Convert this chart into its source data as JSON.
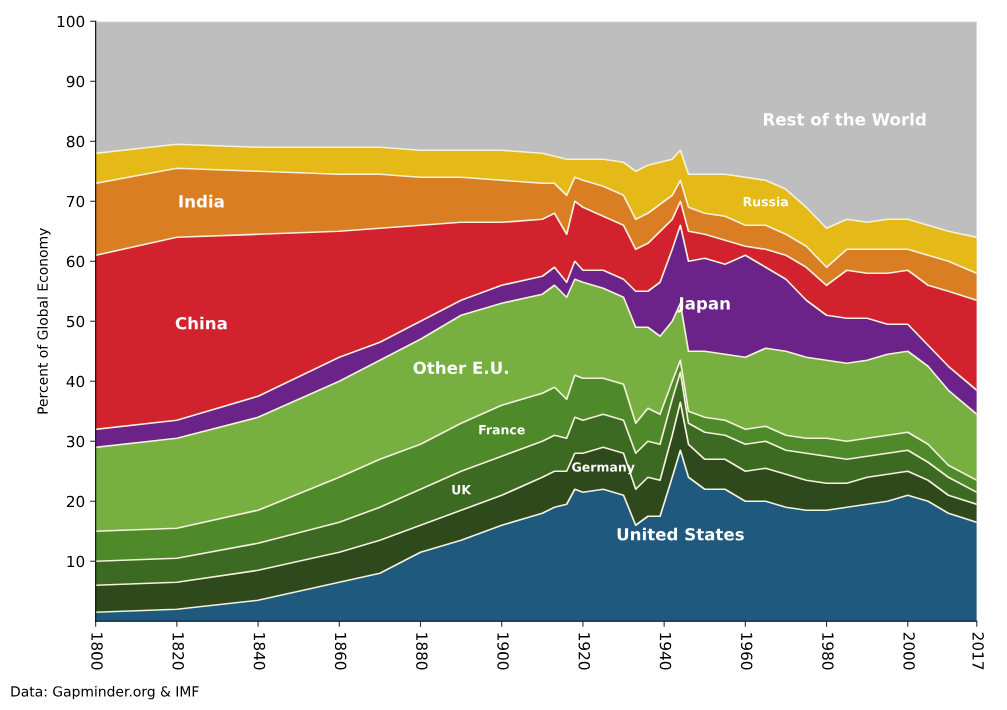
{
  "chart_data": {
    "type": "area",
    "stacked": true,
    "ylabel": "Percent of Global Economy",
    "annotations": [
      "Data: Gapminder.org & IMF"
    ],
    "x": [
      1800,
      1820,
      1840,
      1860,
      1870,
      1880,
      1890,
      1900,
      1910,
      1913,
      1916,
      1918,
      1920,
      1925,
      1930,
      1933,
      1936,
      1939,
      1942,
      1944,
      1946,
      1950,
      1955,
      1960,
      1965,
      1970,
      1975,
      1980,
      1985,
      1990,
      1995,
      2000,
      2005,
      2010,
      2017
    ],
    "xlim": [
      1800,
      2017
    ],
    "xticks": [
      1800,
      1820,
      1840,
      1860,
      1880,
      1900,
      1920,
      1940,
      1960,
      1980,
      2000,
      2017
    ],
    "ylim": [
      0,
      100
    ],
    "yticks": [
      10,
      20,
      30,
      40,
      50,
      60,
      70,
      80,
      90,
      100
    ],
    "grid": false,
    "legend": false,
    "series": [
      {
        "name": "United States",
        "color": "#1f5a7e",
        "values": [
          1.5,
          2,
          3.5,
          6.5,
          8,
          11.5,
          13.5,
          16,
          18,
          19,
          19.5,
          22,
          21.5,
          22,
          21,
          16,
          17.5,
          17.5,
          24,
          28.5,
          24,
          22,
          22,
          20,
          20,
          19,
          18.5,
          18.5,
          19,
          19.5,
          20,
          21,
          20,
          18,
          16.5
        ]
      },
      {
        "name": "Germany",
        "color": "#2e4a1d",
        "values": [
          4.5,
          4.5,
          5,
          5,
          5.5,
          4.5,
          5,
          5,
          6,
          6,
          5.5,
          6,
          6.5,
          7,
          7,
          6,
          6.5,
          6,
          7,
          8,
          5.5,
          5,
          5,
          5,
          5.5,
          5.5,
          5,
          4.5,
          4,
          4.5,
          4.5,
          4,
          3.5,
          3,
          3
        ]
      },
      {
        "name": "UK",
        "color": "#3d6a22",
        "values": [
          4,
          4,
          4.5,
          5,
          5.5,
          6,
          6.5,
          6.5,
          6,
          6,
          5.5,
          6,
          5.5,
          5.5,
          5.5,
          6,
          6,
          6,
          6,
          5,
          3.5,
          4.5,
          4,
          4.5,
          4.5,
          4,
          4.5,
          4.5,
          4,
          3.5,
          3.5,
          3.5,
          3,
          3,
          2
        ]
      },
      {
        "name": "France",
        "color": "#4f8a2a",
        "values": [
          5,
          5,
          5.5,
          7.5,
          8,
          7.5,
          8,
          8.5,
          8,
          8,
          6.5,
          7,
          7,
          6,
          6,
          5,
          5.5,
          5,
          3,
          2,
          2,
          2.5,
          2.5,
          2.5,
          2.5,
          2.5,
          2.5,
          3,
          3,
          3,
          3,
          3,
          3,
          2,
          2
        ]
      },
      {
        "name": "Other E.U.",
        "color": "#77b041",
        "values": [
          14,
          15,
          15.5,
          16,
          16.5,
          17.5,
          18,
          17,
          16.5,
          17,
          17,
          16,
          16,
          15,
          14.5,
          16,
          13.5,
          13,
          10,
          9.5,
          10,
          11,
          11,
          12,
          13,
          14,
          13.5,
          13,
          13,
          13,
          13.5,
          13.5,
          13,
          12.5,
          11
        ]
      },
      {
        "name": "Japan",
        "color": "#6b2389",
        "values": [
          3,
          3,
          3.5,
          4,
          3,
          3,
          2.5,
          3,
          3,
          3,
          2.5,
          3,
          2,
          3,
          3,
          6,
          6,
          9,
          12,
          13,
          15,
          15.5,
          15,
          17,
          13.5,
          12,
          9.5,
          7.5,
          7.5,
          7,
          5,
          4.5,
          3.5,
          4,
          4
        ]
      },
      {
        "name": "China",
        "color": "#d2222d",
        "values": [
          29,
          30.5,
          27,
          21,
          19,
          16,
          13,
          10.5,
          9.5,
          9,
          8,
          10,
          10.5,
          9,
          9,
          7,
          8,
          8.5,
          5,
          4,
          5,
          4,
          4,
          1.5,
          3,
          4,
          5.5,
          5,
          8,
          7.5,
          8.5,
          9,
          10,
          12.5,
          15
        ]
      },
      {
        "name": "India",
        "color": "#d97e22",
        "values": [
          12,
          11.5,
          10.5,
          9.5,
          9,
          8,
          7.5,
          7,
          6,
          5,
          6.5,
          4,
          4.5,
          5,
          5,
          5,
          5,
          4.5,
          4,
          3.5,
          4,
          3.5,
          4,
          3.5,
          4,
          3.5,
          3.5,
          3,
          3.5,
          4,
          4,
          3.5,
          5,
          5,
          4.5
        ]
      },
      {
        "name": "Russia",
        "color": "#e5b918",
        "values": [
          5,
          4,
          4,
          4.5,
          4.5,
          4.5,
          4.5,
          5,
          5,
          4.5,
          6,
          3,
          3.5,
          4.5,
          5.5,
          8,
          8,
          7,
          6,
          5,
          5.5,
          6.5,
          7,
          8,
          7.5,
          7.5,
          6.5,
          6.5,
          5,
          4.5,
          5,
          5,
          5,
          5,
          6
        ]
      },
      {
        "name": "Rest of the World",
        "color": "#bebebe",
        "values": [
          22,
          20.5,
          21,
          21,
          21,
          21.5,
          21.5,
          21.5,
          22,
          22.5,
          23,
          23,
          23,
          23,
          23.5,
          25,
          24,
          23.5,
          23,
          21.5,
          25.5,
          25.5,
          25.5,
          26,
          26.5,
          28,
          31,
          34.5,
          33,
          33.5,
          33,
          33,
          34,
          35,
          36
        ]
      }
    ]
  }
}
